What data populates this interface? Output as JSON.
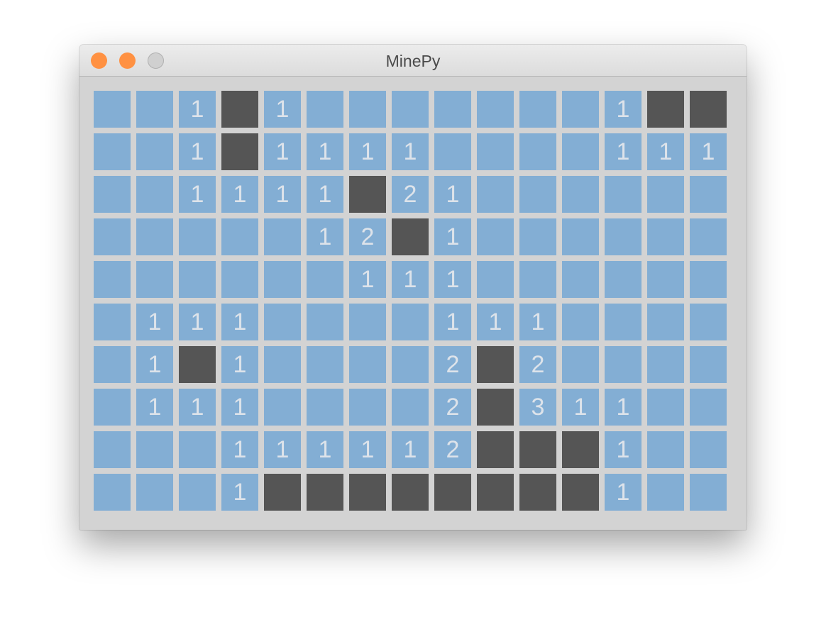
{
  "window": {
    "title": "MinePy",
    "buttons": [
      {
        "name": "close",
        "color": "#ff9142"
      },
      {
        "name": "minimize",
        "color": "#ff9142"
      },
      {
        "name": "zoom",
        "color": "#d0d0d0"
      }
    ]
  },
  "colors": {
    "unrevealed": "#83aed4",
    "dark": "#555555",
    "number": "#dde3ea"
  },
  "board": [
    [
      "",
      "",
      "1",
      "D",
      "1",
      "",
      "",
      "",
      "",
      "",
      "",
      "",
      "1",
      "D",
      "D"
    ],
    [
      "",
      "",
      "1",
      "D",
      "1",
      "1",
      "1",
      "1",
      "",
      "",
      "",
      "",
      "1",
      "1",
      "1"
    ],
    [
      "",
      "",
      "1",
      "1",
      "1",
      "1",
      "D",
      "2",
      "1",
      "",
      "",
      "",
      "",
      "",
      ""
    ],
    [
      "",
      "",
      "",
      "",
      "",
      "1",
      "2",
      "D",
      "1",
      "",
      "",
      "",
      "",
      "",
      ""
    ],
    [
      "",
      "",
      "",
      "",
      "",
      "",
      "1",
      "1",
      "1",
      "",
      "",
      "",
      "",
      "",
      ""
    ],
    [
      "",
      "1",
      "1",
      "1",
      "",
      "",
      "",
      "",
      "1",
      "1",
      "1",
      "",
      "",
      "",
      ""
    ],
    [
      "",
      "1",
      "D",
      "1",
      "",
      "",
      "",
      "",
      "2",
      "D",
      "2",
      "",
      "",
      "",
      ""
    ],
    [
      "",
      "1",
      "1",
      "1",
      "",
      "",
      "",
      "",
      "2",
      "D",
      "3",
      "1",
      "1",
      "",
      ""
    ],
    [
      "",
      "",
      "",
      "1",
      "1",
      "1",
      "1",
      "1",
      "2",
      "D",
      "D",
      "D",
      "1",
      "",
      ""
    ],
    [
      "",
      "",
      "",
      "1",
      "D",
      "D",
      "D",
      "D",
      "D",
      "D",
      "D",
      "D",
      "1",
      "",
      ""
    ]
  ]
}
